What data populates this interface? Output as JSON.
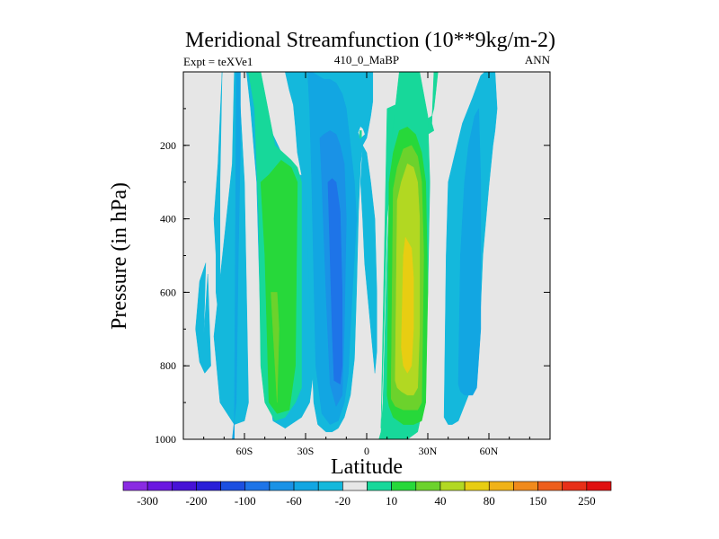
{
  "chart_data": {
    "type": "heatmap",
    "title": "Meridional Streamfunction (10**9kg/m-2)",
    "subtitle_left": "Expt = teXVe1",
    "subtitle_center": "410_0_MaBP",
    "subtitle_right": "ANN",
    "xlabel": "Latitude",
    "ylabel": "Pressure (in hPa)",
    "xlim": [
      -90,
      90
    ],
    "ylim": [
      1000,
      0
    ],
    "x_ticks": [
      {
        "value": -60,
        "label": "60S"
      },
      {
        "value": -30,
        "label": "30S"
      },
      {
        "value": 0,
        "label": "0"
      },
      {
        "value": 30,
        "label": "30N"
      },
      {
        "value": 60,
        "label": "60N"
      }
    ],
    "y_ticks": [
      {
        "value": 200,
        "label": "200"
      },
      {
        "value": 400,
        "label": "400"
      },
      {
        "value": 600,
        "label": "600"
      },
      {
        "value": 800,
        "label": "800"
      },
      {
        "value": 1000,
        "label": "1000"
      }
    ],
    "background_color": "#e6e6e6",
    "colorbar": {
      "colors": [
        "#8a2be2",
        "#6a17e0",
        "#4712d6",
        "#2a1fd8",
        "#1c4fe0",
        "#1e74e8",
        "#1a92e6",
        "#12a6e2",
        "#14b8dc",
        "#e6e6e6",
        "#17d89a",
        "#27d83a",
        "#6cd22c",
        "#b2d822",
        "#e8cd12",
        "#f0b218",
        "#f08a1c",
        "#ee5e1c",
        "#e83018",
        "#e01010"
      ],
      "labels": [
        "-300",
        "-200",
        "-100",
        "-60",
        "-20",
        "10",
        "40",
        "80",
        "150",
        "250"
      ]
    },
    "regions": [
      {
        "color": "#14b8dc",
        "lon": [
          -80,
          -78,
          -76.5,
          -79.5,
          -82,
          -84,
          -82,
          -79
        ],
        "p": [
          720,
          550,
          800,
          820,
          790,
          700,
          570,
          520
        ]
      },
      {
        "color": "#14b8dc",
        "lon": [
          -72,
          -71,
          -71,
          -73,
          -75,
          -74,
          -74,
          -72
        ],
        "p": [
          300,
          0,
          0,
          250,
          400,
          500,
          600,
          700
        ]
      },
      {
        "color": "#14b8dc",
        "lon": [
          -75,
          -72,
          -65,
          -60,
          -58,
          -59,
          -60,
          -62,
          -63,
          -65,
          -66
        ],
        "p": [
          720,
          900,
          960,
          950,
          900,
          600,
          300,
          100,
          0,
          0,
          250
        ]
      },
      {
        "color": "#12a6e2",
        "lon": [
          -65,
          -64,
          -62,
          -62,
          -63,
          -64,
          -66
        ],
        "p": [
          1000,
          0,
          0,
          200,
          500,
          900,
          1000
        ]
      },
      {
        "color": "#14b8dc",
        "lon": [
          -59,
          -57,
          -54,
          -52,
          -46,
          -40,
          -32,
          -28,
          -24,
          -22,
          -21,
          -23,
          -28,
          -33,
          -37,
          -41,
          -47,
          -53,
          -56,
          -58
        ],
        "p": [
          0,
          100,
          300,
          700,
          950,
          970,
          940,
          900,
          720,
          500,
          320,
          300,
          290,
          280,
          270,
          230,
          160,
          100,
          30,
          0
        ]
      },
      {
        "color": "#17d89a",
        "lon": [
          -58,
          -55,
          -54,
          -53,
          -52,
          -50,
          -45,
          -40,
          -35,
          -32,
          -32,
          -34,
          -37,
          -45,
          -52
        ],
        "p": [
          0,
          100,
          260,
          400,
          800,
          900,
          950,
          940,
          900,
          860,
          300,
          260,
          240,
          200,
          0
        ]
      },
      {
        "color": "#27d83a",
        "lon": [
          -52,
          -50,
          -48,
          -44,
          -38,
          -35,
          -34,
          -37,
          -42,
          -48
        ],
        "p": [
          300,
          500,
          900,
          930,
          920,
          800,
          300,
          260,
          240,
          280
        ]
      },
      {
        "color": "#6cd22c",
        "lon": [
          -47,
          -46,
          -44,
          -43,
          -44,
          -46
        ],
        "p": [
          600,
          700,
          900,
          700,
          600,
          600
        ]
      },
      {
        "color": "#14b8dc",
        "lon": [
          -40,
          -38,
          -36,
          -35,
          -34,
          -32,
          -30,
          -26,
          -24,
          -20,
          -17,
          -14,
          -11,
          -8,
          -6,
          -5,
          -4,
          -3,
          -2,
          0,
          1,
          2,
          3,
          3,
          2,
          0,
          -3,
          -6,
          -8,
          -9,
          -12,
          -16,
          -22,
          -28,
          -34,
          -39
        ],
        "p": [
          0,
          50,
          90,
          150,
          220,
          280,
          340,
          900,
          960,
          980,
          980,
          970,
          940,
          880,
          780,
          600,
          380,
          250,
          200,
          180,
          150,
          120,
          80,
          0,
          0,
          0,
          0,
          0,
          0,
          0,
          0,
          0,
          0,
          0,
          0,
          0
        ]
      },
      {
        "color": "#12a6e2",
        "lon": [
          -29,
          -28,
          -27,
          -25,
          -22,
          -18,
          -14,
          -11,
          -9,
          -8,
          -7,
          -6,
          -5,
          -6,
          -8,
          -10,
          -12,
          -15,
          -18,
          -21,
          -24,
          -27
        ],
        "p": [
          0,
          100,
          300,
          800,
          930,
          960,
          950,
          900,
          820,
          700,
          600,
          500,
          400,
          300,
          200,
          100,
          60,
          30,
          20,
          20,
          10,
          0
        ]
      },
      {
        "color": "#1a92e6",
        "lon": [
          -23,
          -22,
          -20,
          -18,
          -15,
          -12,
          -11,
          -10,
          -11,
          -13,
          -15,
          -18,
          -21
        ],
        "p": [
          180,
          300,
          600,
          850,
          910,
          880,
          700,
          400,
          250,
          200,
          170,
          160,
          170
        ]
      },
      {
        "color": "#1e74e8",
        "lon": [
          -19,
          -18,
          -17,
          -16,
          -13,
          -12,
          -12,
          -13,
          -15,
          -17,
          -18
        ],
        "p": [
          300,
          500,
          700,
          840,
          850,
          800,
          600,
          380,
          300,
          290,
          295
        ]
      },
      {
        "color": "#14b8dc",
        "lon": [
          -2,
          0,
          2,
          4,
          5,
          5,
          4,
          3,
          1,
          -1,
          -2,
          -3
        ],
        "p": [
          200,
          220,
          300,
          400,
          600,
          760,
          820,
          760,
          640,
          520,
          400,
          300
        ]
      },
      {
        "color": "#17d89a",
        "lon": [
          7,
          8,
          10,
          12,
          16,
          20,
          25,
          29,
          32,
          33,
          34,
          35,
          34,
          33,
          33,
          32,
          33,
          30,
          26,
          22,
          18,
          14,
          10
        ],
        "p": [
          970,
          800,
          400,
          280,
          190,
          150,
          135,
          130,
          120,
          100,
          50,
          0,
          0,
          0,
          0,
          140,
          160,
          170,
          140,
          120,
          100,
          90,
          100
        ]
      },
      {
        "color": "#17d89a",
        "lon": [
          6,
          7,
          8,
          10,
          12,
          14,
          16,
          18,
          22,
          26,
          30,
          31,
          30,
          28,
          25,
          20,
          15,
          11,
          8
        ],
        "p": [
          1000,
          980,
          900,
          500,
          200,
          100,
          0,
          0,
          0,
          0,
          120,
          300,
          600,
          900,
          980,
          1000,
          1000,
          1000,
          1000
        ]
      },
      {
        "color": "#27d83a",
        "lon": [
          10,
          11,
          13,
          16,
          20,
          24,
          27,
          29,
          30,
          29,
          27,
          23,
          18,
          13,
          11
        ],
        "p": [
          880,
          300,
          220,
          160,
          150,
          170,
          220,
          300,
          600,
          900,
          950,
          960,
          960,
          940,
          910
        ]
      },
      {
        "color": "#6cd22c",
        "lon": [
          12,
          13,
          15,
          18,
          22,
          25,
          27,
          28,
          27,
          25,
          22,
          18,
          14,
          12
        ],
        "p": [
          850,
          320,
          260,
          210,
          200,
          230,
          300,
          500,
          900,
          920,
          920,
          920,
          910,
          890
        ]
      },
      {
        "color": "#b2d822",
        "lon": [
          14,
          15,
          17,
          20,
          23,
          25,
          26,
          26,
          25,
          23,
          20,
          17,
          15
        ],
        "p": [
          840,
          350,
          300,
          250,
          260,
          300,
          400,
          700,
          860,
          880,
          880,
          870,
          860
        ]
      },
      {
        "color": "#e8cd12",
        "lon": [
          17,
          18,
          19,
          20,
          22,
          23,
          23,
          22,
          20,
          18
        ],
        "p": [
          750,
          500,
          450,
          460,
          480,
          560,
          700,
          800,
          820,
          800
        ]
      },
      {
        "color": "#14b8dc",
        "lon": [
          38,
          39,
          40,
          43,
          47,
          52,
          56,
          58,
          63,
          64,
          63,
          62,
          60,
          57,
          55,
          50,
          45,
          42,
          40
        ],
        "p": [
          940,
          500,
          300,
          230,
          140,
          70,
          10,
          0,
          0,
          100,
          160,
          200,
          310,
          500,
          760,
          880,
          950,
          960,
          960
        ]
      },
      {
        "color": "#12a6e2",
        "lon": [
          45,
          46,
          48,
          50,
          53,
          55,
          56,
          56,
          54,
          52,
          48,
          46
        ],
        "p": [
          850,
          500,
          300,
          200,
          120,
          100,
          300,
          700,
          860,
          880,
          880,
          870
        ]
      },
      {
        "color": "#e6e6e6",
        "lon": [
          -3,
          -2,
          -1,
          -3,
          -4
        ],
        "p": [
          150,
          155,
          170,
          180,
          165
        ]
      },
      {
        "color": "#17d89a",
        "lon": [
          -3.5,
          -2.5,
          -2.5,
          -3.5
        ],
        "p": [
          160,
          160,
          180,
          180
        ]
      }
    ]
  }
}
